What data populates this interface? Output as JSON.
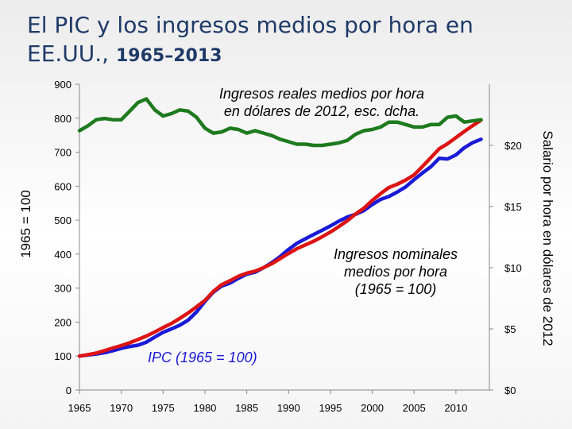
{
  "slide": {
    "title_line1": "El PIC y los ingresos medios por hora en",
    "title_line2": "EE.UU.,",
    "title_years": "1965–2013"
  },
  "chart_data": {
    "type": "line",
    "title": "El PIC y los ingresos medios por hora en EE.UU., 1965–2013",
    "xlabel": "",
    "ylabel": "1965 = 100",
    "y2label": "Salario por hora en dólares de 2012",
    "xlim": [
      1965,
      2014
    ],
    "ylim": [
      0,
      900
    ],
    "y2lim": [
      0,
      25
    ],
    "x_ticks": [
      1965,
      1970,
      1975,
      1980,
      1985,
      1990,
      1995,
      2000,
      2005,
      2010
    ],
    "y_ticks": [
      0,
      100,
      200,
      300,
      400,
      500,
      600,
      700,
      800,
      900
    ],
    "y2_ticks": [
      "$0",
      "$5",
      "$10",
      "$15",
      "$20"
    ],
    "y2_tick_values": [
      0,
      5,
      10,
      15,
      20
    ],
    "grid": false,
    "series": [
      {
        "name": "IPC (1965 = 100)",
        "axis": "left",
        "color": "#1a1ad6",
        "x": [
          1965,
          1966,
          1967,
          1968,
          1969,
          1970,
          1971,
          1972,
          1973,
          1974,
          1975,
          1976,
          1977,
          1978,
          1979,
          1980,
          1981,
          1982,
          1983,
          1984,
          1985,
          1986,
          1987,
          1988,
          1989,
          1990,
          1991,
          1992,
          1993,
          1994,
          1995,
          1996,
          1997,
          1998,
          1999,
          2000,
          2001,
          2002,
          2003,
          2004,
          2005,
          2006,
          2007,
          2008,
          2009,
          2010,
          2011,
          2012,
          2013
        ],
        "y": [
          100,
          103,
          106,
          110,
          116,
          123,
          128,
          132,
          141,
          156,
          170,
          180,
          191,
          206,
          230,
          261,
          288,
          306,
          315,
          329,
          341,
          347,
          360,
          375,
          393,
          414,
          432,
          445,
          458,
          470,
          483,
          497,
          509,
          517,
          528,
          546,
          561,
          570,
          583,
          598,
          619,
          639,
          657,
          682,
          680,
          692,
          713,
          728,
          738
        ]
      },
      {
        "name": "Ingresos nominales medios por hora (1965 = 100)",
        "axis": "left",
        "color": "#dd1414",
        "x": [
          1965,
          1966,
          1967,
          1968,
          1969,
          1970,
          1971,
          1972,
          1973,
          1974,
          1975,
          1976,
          1977,
          1978,
          1979,
          1980,
          1981,
          1982,
          1983,
          1984,
          1985,
          1986,
          1987,
          1988,
          1989,
          1990,
          1991,
          1992,
          1993,
          1994,
          1995,
          1996,
          1997,
          1998,
          1999,
          2000,
          2001,
          2002,
          2003,
          2004,
          2005,
          2006,
          2007,
          2008,
          2009,
          2010,
          2011,
          2012,
          2013
        ],
        "y": [
          100,
          104,
          109,
          116,
          124,
          131,
          139,
          149,
          159,
          171,
          184,
          196,
          211,
          227,
          245,
          264,
          290,
          310,
          322,
          335,
          344,
          350,
          360,
          372,
          387,
          402,
          416,
          427,
          438,
          451,
          465,
          481,
          498,
          518,
          535,
          558,
          578,
          596,
          606,
          618,
          633,
          658,
          684,
          710,
          725,
          743,
          761,
          778,
          794
        ]
      },
      {
        "name": "Ingresos reales medios por hora en dólares de 2012, esc. dcha.",
        "axis": "right",
        "color": "#1e7a1e",
        "x": [
          1965,
          1966,
          1967,
          1968,
          1969,
          1970,
          1971,
          1972,
          1973,
          1974,
          1975,
          1976,
          1977,
          1978,
          1979,
          1980,
          1981,
          1982,
          1983,
          1984,
          1985,
          1986,
          1987,
          1988,
          1989,
          1990,
          1991,
          1992,
          1993,
          1994,
          1995,
          1996,
          1997,
          1998,
          1999,
          2000,
          2001,
          2002,
          2003,
          2004,
          2005,
          2006,
          2007,
          2008,
          2009,
          2010,
          2011,
          2012,
          2013
        ],
        "y": [
          21.2,
          21.6,
          22.1,
          22.2,
          22.1,
          22.1,
          22.8,
          23.5,
          23.8,
          22.9,
          22.4,
          22.6,
          22.9,
          22.8,
          22.3,
          21.4,
          21.0,
          21.1,
          21.4,
          21.3,
          21.0,
          21.2,
          21.0,
          20.8,
          20.5,
          20.3,
          20.1,
          20.1,
          20.0,
          20.0,
          20.1,
          20.2,
          20.4,
          20.9,
          21.2,
          21.3,
          21.5,
          21.9,
          21.9,
          21.7,
          21.5,
          21.5,
          21.7,
          21.7,
          22.3,
          22.4,
          21.9,
          22.0,
          22.1
        ]
      }
    ],
    "annotations": [
      {
        "lines": [
          "Ingresos reales medios por hora",
          "en dólares de 2012, esc. dcha."
        ],
        "color": "#000000"
      },
      {
        "lines": [
          "Ingresos nominales",
          "medios por hora",
          "(1965 = 100)"
        ],
        "color": "#000000"
      },
      {
        "lines": [
          "IPC (1965 = 100)"
        ],
        "color": "#1a1ad6"
      }
    ]
  }
}
